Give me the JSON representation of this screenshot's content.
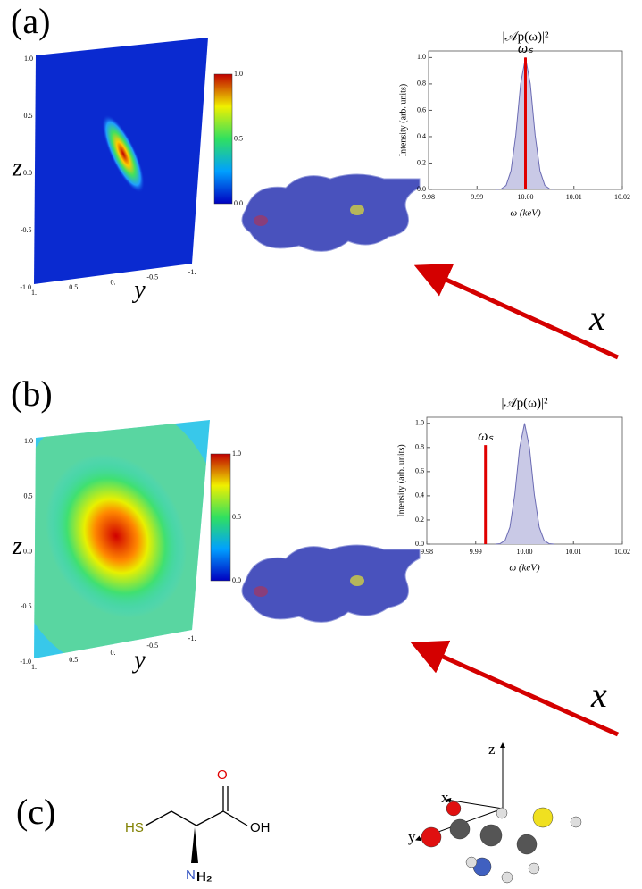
{
  "panels": [
    {
      "label": "(a)",
      "heatmap": {
        "y_label": "y",
        "z_label": "z",
        "y_ticks": [
          "1.",
          "0.5",
          "0.",
          "-0.5",
          "-1."
        ],
        "z_ticks": [
          "1.0",
          "0.5",
          "0.0",
          "-0.5",
          "-1.0"
        ],
        "colorbar_ticks": [
          "1.0",
          "0.5",
          "0.0"
        ]
      },
      "beam_label": "x"
    },
    {
      "label": "(b)",
      "heatmap": {
        "y_label": "y",
        "z_label": "z",
        "y_ticks": [
          "1.",
          "0.5",
          "0.",
          "-0.5",
          "-1."
        ],
        "z_ticks": [
          "1.0",
          "0.5",
          "0.0",
          "-0.5",
          "-1.0"
        ],
        "colorbar_ticks": [
          "1.0",
          "0.5",
          "0.0"
        ]
      },
      "beam_label": "x"
    }
  ],
  "chart_data": [
    {
      "type": "area",
      "title": "|𝒜p(ω)|²",
      "x_label": "ω  (keV)",
      "y_label": "Intensity  (arb. units)",
      "color": "#c9c9e6",
      "line_color": "#6b6bb3",
      "x": [
        9.994,
        9.995,
        9.996,
        9.997,
        9.998,
        9.999,
        10.0,
        10.001,
        10.002,
        10.003,
        10.004,
        10.005,
        10.006
      ],
      "values": [
        0,
        0.004,
        0.03,
        0.14,
        0.41,
        0.8,
        1,
        0.8,
        0.41,
        0.14,
        0.03,
        0.004,
        0
      ],
      "xlim": [
        9.98,
        10.02
      ],
      "ylim": [
        0,
        1.05
      ],
      "xticks": [
        9.98,
        9.99,
        {
          "value": 10.0,
          "label": "10.00"
        },
        10.01,
        10.02
      ],
      "yticks": [
        {
          "value": 0,
          "label": "0.0"
        },
        0.2,
        0.4,
        0.6,
        0.8,
        {
          "value": 1,
          "label": "1.0"
        }
      ],
      "marker": {
        "label": "ωₛ",
        "x": 10.0,
        "height": 1.0,
        "color": "#e00000"
      }
    },
    {
      "type": "area",
      "title": "|𝒜p(ω)|²",
      "x_label": "ω  (keV)",
      "y_label": "Intensity  (arb. units)",
      "color": "#c9c9e6",
      "line_color": "#6b6bb3",
      "x": [
        9.994,
        9.995,
        9.996,
        9.997,
        9.998,
        9.999,
        10.0,
        10.001,
        10.002,
        10.003,
        10.004,
        10.005,
        10.006
      ],
      "values": [
        0,
        0.004,
        0.03,
        0.14,
        0.41,
        0.8,
        1,
        0.8,
        0.41,
        0.14,
        0.03,
        0.004,
        0
      ],
      "xlim": [
        9.98,
        10.02
      ],
      "ylim": [
        0,
        1.05
      ],
      "xticks": [
        9.98,
        9.99,
        {
          "value": 10.0,
          "label": "10.00"
        },
        10.01,
        10.02
      ],
      "yticks": [
        {
          "value": 0,
          "label": "0.0"
        },
        0.2,
        0.4,
        0.6,
        0.8,
        {
          "value": 1,
          "label": "1.0"
        }
      ],
      "marker": {
        "label": "ωₛ",
        "x": 9.992,
        "height": 0.82,
        "color": "#e00000"
      }
    }
  ],
  "panel_c": {
    "label": "(c)",
    "structure_labels": {
      "sh": "HS",
      "o": "O",
      "oh": "OH",
      "n": "N",
      "h2": "H₂"
    },
    "axis_labels": [
      "z",
      "x",
      "y"
    ]
  }
}
